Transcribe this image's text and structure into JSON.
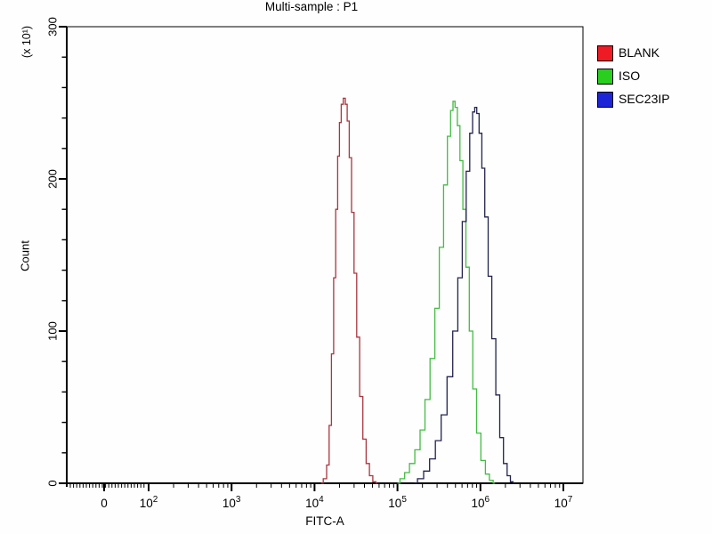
{
  "title": "Multi-sample : P1",
  "legend": {
    "items": [
      {
        "label": "BLANK",
        "color": "#ee1b24"
      },
      {
        "label": "ISO",
        "color": "#2ace1f"
      },
      {
        "label": "SEC23IP",
        "color": "#1d24d8"
      }
    ]
  },
  "chart_data": {
    "type": "line",
    "subtype": "flow-cytometry-histogram-overlay",
    "title": "Multi-sample : P1",
    "xlabel": "FITC-A",
    "ylabel": "Count",
    "y_multiplier_label": "(x 10¹)",
    "x_scale": "biexponential-log",
    "ylim": [
      0,
      300
    ],
    "y_major_ticks": [
      {
        "label": "0",
        "value": 0
      },
      {
        "label": "100",
        "value": 100
      },
      {
        "label": "200",
        "value": 200
      },
      {
        "label": "300",
        "value": 300
      }
    ],
    "y_minor_step": 20,
    "x_major_ticks": [
      {
        "label": "0",
        "sup": "",
        "value": 0
      },
      {
        "label": "10",
        "sup": "2",
        "value": 100
      },
      {
        "label": "10",
        "sup": "3",
        "value": 1000
      },
      {
        "label": "10",
        "sup": "4",
        "value": 10000
      },
      {
        "label": "10",
        "sup": "5",
        "value": 100000
      },
      {
        "label": "10",
        "sup": "6",
        "value": 1000000
      },
      {
        "label": "10",
        "sup": "7",
        "value": 10000000
      }
    ],
    "legend_position": "top-right-outside",
    "grid": false,
    "series": [
      {
        "name": "BLANK",
        "curve_color": "#a93540",
        "legend_color": "#ee1b24",
        "peak_x": 23000,
        "peak_count": 253,
        "points": [
          [
            12000,
            0
          ],
          [
            13500,
            3
          ],
          [
            14500,
            12
          ],
          [
            15500,
            38
          ],
          [
            16500,
            85
          ],
          [
            17500,
            135
          ],
          [
            18500,
            180
          ],
          [
            19500,
            215
          ],
          [
            20500,
            237
          ],
          [
            21500,
            249
          ],
          [
            23000,
            253
          ],
          [
            24000,
            249
          ],
          [
            25500,
            238
          ],
          [
            27000,
            214
          ],
          [
            29000,
            178
          ],
          [
            31000,
            138
          ],
          [
            33500,
            96
          ],
          [
            36500,
            57
          ],
          [
            40000,
            29
          ],
          [
            44000,
            13
          ],
          [
            48000,
            5
          ],
          [
            53000,
            1
          ],
          [
            57000,
            0
          ]
        ]
      },
      {
        "name": "ISO",
        "curve_color": "#44bb44",
        "legend_color": "#2ace1f",
        "peak_x": 480000,
        "peak_count": 251,
        "points": [
          [
            100000,
            0
          ],
          [
            115000,
            3
          ],
          [
            130000,
            7
          ],
          [
            150000,
            13
          ],
          [
            175000,
            22
          ],
          [
            200000,
            35
          ],
          [
            230000,
            55
          ],
          [
            265000,
            82
          ],
          [
            300000,
            115
          ],
          [
            340000,
            155
          ],
          [
            380000,
            196
          ],
          [
            420000,
            228
          ],
          [
            455000,
            245
          ],
          [
            480000,
            251
          ],
          [
            510000,
            247
          ],
          [
            545000,
            235
          ],
          [
            590000,
            212
          ],
          [
            640000,
            180
          ],
          [
            700000,
            142
          ],
          [
            770000,
            100
          ],
          [
            850000,
            62
          ],
          [
            950000,
            33
          ],
          [
            1080000,
            15
          ],
          [
            1220000,
            6
          ],
          [
            1350000,
            2
          ],
          [
            1500000,
            0
          ]
        ]
      },
      {
        "name": "SEC23IP",
        "curve_color": "#23234f",
        "legend_color": "#1d24d8",
        "peak_x": 880000,
        "peak_count": 247,
        "points": [
          [
            160000,
            0
          ],
          [
            190000,
            3
          ],
          [
            225000,
            8
          ],
          [
            265000,
            16
          ],
          [
            310000,
            28
          ],
          [
            365000,
            45
          ],
          [
            430000,
            70
          ],
          [
            500000,
            100
          ],
          [
            570000,
            135
          ],
          [
            640000,
            172
          ],
          [
            710000,
            205
          ],
          [
            780000,
            230
          ],
          [
            830000,
            244
          ],
          [
            880000,
            247
          ],
          [
            930000,
            243
          ],
          [
            1000000,
            230
          ],
          [
            1080000,
            207
          ],
          [
            1180000,
            175
          ],
          [
            1300000,
            136
          ],
          [
            1450000,
            95
          ],
          [
            1620000,
            58
          ],
          [
            1800000,
            30
          ],
          [
            2000000,
            13
          ],
          [
            2200000,
            5
          ],
          [
            2400000,
            1
          ],
          [
            2550000,
            0
          ]
        ]
      }
    ]
  }
}
